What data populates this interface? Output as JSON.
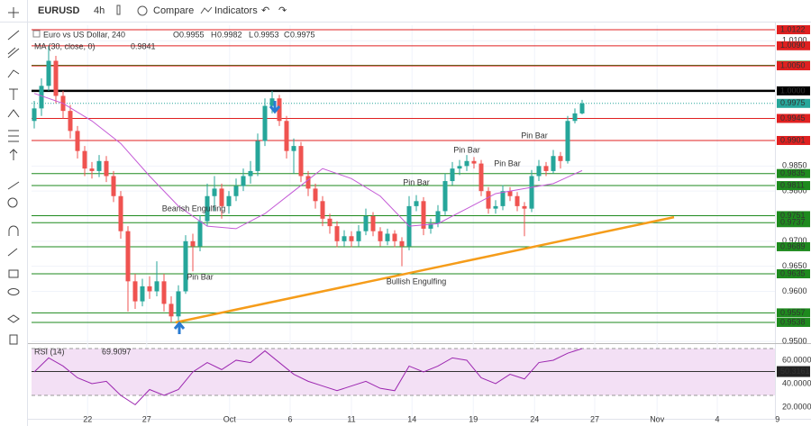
{
  "toolbar": {
    "symbol": "EURUSD",
    "interval": "4h",
    "compare": "Compare",
    "indicators": "Indicators"
  },
  "legend": {
    "title": "Euro vs US Dollar, 240",
    "o_label": "O",
    "open": 0.9955,
    "h_label": "H",
    "high": 0.9982,
    "l_label": "L",
    "low": 0.9953,
    "c_label": "C",
    "close": 0.9975,
    "ma_label": "MA (30, close, 0)",
    "ma_value": 0.9841,
    "rsi_label": "RSI (14)",
    "rsi_value": 69.9097
  },
  "chart_data": {
    "type": "candlestick",
    "xlim": [
      -0.375,
      102.75
    ],
    "ylim": [
      0.9502,
      1.0131
    ],
    "xticks": [
      {
        "value": 7.4,
        "label": "22"
      },
      {
        "value": 15.6,
        "label": "27"
      },
      {
        "value": 27.1,
        "label": "Oct"
      },
      {
        "value": 35.5,
        "label": "6"
      },
      {
        "value": 44,
        "label": "11"
      },
      {
        "value": 52.4,
        "label": "14"
      },
      {
        "value": 60.9,
        "label": "19"
      },
      {
        "value": 69.4,
        "label": "24"
      },
      {
        "value": 77.75,
        "label": "27"
      },
      {
        "value": 86.4,
        "label": "Nov"
      },
      {
        "value": 94.75,
        "label": "4"
      },
      {
        "value": 103.1,
        "label": "9"
      }
    ],
    "yticks": [
      {
        "value": 1.01,
        "label": "1.0100"
      },
      {
        "value": 0.985,
        "label": "0.9850"
      },
      {
        "value": 0.98,
        "label": "0.9800"
      },
      {
        "value": 0.97,
        "label": "0.9700"
      },
      {
        "value": 0.965,
        "label": "0.9650"
      },
      {
        "value": 0.96,
        "label": "0.9600"
      },
      {
        "value": 0.95,
        "label": "0.9500"
      }
    ],
    "up_color": "#26a69a",
    "down_color": "#ef5350",
    "open": [
      0.994,
      0.9965,
      1.001,
      1.006,
      0.999,
      0.996,
      0.992,
      0.988,
      0.9845,
      0.984,
      0.986,
      0.983,
      0.979,
      0.972,
      0.962,
      0.958,
      0.961,
      0.96,
      0.962,
      0.9575,
      0.955,
      0.96,
      0.97,
      0.969,
      0.974,
      0.979,
      0.9805,
      0.977,
      0.979,
      0.981,
      0.983,
      0.984,
      0.99,
      0.997,
      0.9985,
      0.994,
      0.988,
      0.989,
      0.983,
      0.9805,
      0.978,
      0.9745,
      0.973,
      0.97,
      0.971,
      0.97,
      0.972,
      0.975,
      0.972,
      0.97,
      0.9715,
      0.97,
      0.969,
      0.977,
      0.978,
      0.9725,
      0.9735,
      0.976,
      0.982,
      0.9845,
      0.985,
      0.986,
      0.9855,
      0.98,
      0.9765,
      0.977,
      0.98,
      0.979,
      0.977,
      0.9765,
      0.983,
      0.985,
      0.984,
      0.987,
      0.986,
      0.994,
      0.9955
    ],
    "high": [
      0.998,
      1.0025,
      1.009,
      1.007,
      1.0,
      0.9972,
      0.993,
      0.989,
      0.9858,
      0.9872,
      0.987,
      0.984,
      0.98,
      0.973,
      0.9635,
      0.9625,
      0.963,
      0.966,
      0.9635,
      0.959,
      0.9612,
      0.9712,
      0.9715,
      0.9752,
      0.9815,
      0.983,
      0.9815,
      0.98,
      0.9825,
      0.9845,
      0.986,
      0.9915,
      0.9985,
      1.0,
      0.9992,
      0.995,
      0.9905,
      0.9898,
      0.984,
      0.9815,
      0.979,
      0.9755,
      0.974,
      0.9722,
      0.972,
      0.9732,
      0.9765,
      0.9758,
      0.9728,
      0.9725,
      0.9722,
      0.9708,
      0.979,
      0.9792,
      0.9788,
      0.9745,
      0.9772,
      0.9835,
      0.9858,
      0.9862,
      0.9872,
      0.9868,
      0.9862,
      0.9808,
      0.9782,
      0.9812,
      0.9808,
      0.9798,
      0.9778,
      0.9842,
      0.9862,
      0.9858,
      0.9882,
      0.9878,
      0.995,
      0.9965,
      0.9982
    ],
    "low": [
      0.9925,
      0.995,
      1.0,
      0.9975,
      0.9945,
      0.9905,
      0.9865,
      0.983,
      0.9825,
      0.9828,
      0.9818,
      0.9778,
      0.9705,
      0.956,
      0.9565,
      0.957,
      0.9585,
      0.959,
      0.956,
      0.9538,
      0.954,
      0.9595,
      0.964,
      0.968,
      0.973,
      0.976,
      0.9745,
      0.9755,
      0.978,
      0.98,
      0.9815,
      0.983,
      0.989,
      0.9955,
      0.993,
      0.9865,
      0.9835,
      0.9818,
      0.979,
      0.9765,
      0.973,
      0.9715,
      0.9688,
      0.969,
      0.9688,
      0.969,
      0.9712,
      0.971,
      0.969,
      0.9692,
      0.9688,
      0.965,
      0.9682,
      0.976,
      0.9712,
      0.9715,
      0.9728,
      0.9752,
      0.9812,
      0.9832,
      0.984,
      0.9845,
      0.979,
      0.9755,
      0.9755,
      0.9762,
      0.978,
      0.976,
      0.971,
      0.9758,
      0.982,
      0.983,
      0.9835,
      0.9845,
      0.9855,
      0.9935,
      0.9953
    ],
    "close": [
      0.9965,
      1.001,
      1.006,
      0.999,
      0.996,
      0.992,
      0.988,
      0.9845,
      0.984,
      0.986,
      0.983,
      0.979,
      0.972,
      0.962,
      0.958,
      0.961,
      0.96,
      0.962,
      0.9575,
      0.955,
      0.96,
      0.97,
      0.969,
      0.974,
      0.979,
      0.9805,
      0.977,
      0.979,
      0.981,
      0.983,
      0.984,
      0.99,
      0.997,
      0.9985,
      0.994,
      0.988,
      0.989,
      0.983,
      0.9805,
      0.978,
      0.9745,
      0.973,
      0.97,
      0.971,
      0.97,
      0.972,
      0.975,
      0.972,
      0.97,
      0.9715,
      0.97,
      0.969,
      0.977,
      0.978,
      0.9725,
      0.9735,
      0.976,
      0.982,
      0.9845,
      0.985,
      0.986,
      0.9855,
      0.98,
      0.9765,
      0.977,
      0.98,
      0.979,
      0.977,
      0.9765,
      0.983,
      0.985,
      0.984,
      0.987,
      0.986,
      0.994,
      0.9955,
      0.9975
    ],
    "ma": {
      "color": "#c45ad6",
      "x": [
        0,
        4,
        8,
        12,
        16,
        20,
        24,
        28,
        32,
        36,
        40,
        44,
        48,
        52,
        56,
        60,
        64,
        68,
        72,
        76
      ],
      "values": [
        0.9995,
        0.9975,
        0.994,
        0.9895,
        0.983,
        0.977,
        0.973,
        0.9725,
        0.9755,
        0.98,
        0.9845,
        0.9825,
        0.979,
        0.973,
        0.9735,
        0.9765,
        0.9795,
        0.9805,
        0.9815,
        0.9841
      ]
    },
    "trendline": {
      "color": "#f59c1a",
      "x": [
        19.6,
        88.75
      ],
      "values": [
        0.9538,
        0.9748
      ]
    },
    "levels": [
      {
        "value": 1.0122,
        "label": "1.0122",
        "color": "#e02020"
      },
      {
        "value": 1.009,
        "label": "1.0090",
        "color": "#e02020"
      },
      {
        "value": 1.0051,
        "label": "1.0051",
        "color": "#1e8a1e"
      },
      {
        "value": 1.005,
        "label": "1.0050",
        "color": "#e02020"
      },
      {
        "value": 1,
        "label": "1.0000",
        "color": "#000000"
      },
      {
        "value": 0.9975,
        "label": "0.9975",
        "color": "#26a69a"
      },
      {
        "value": 0.9945,
        "label": "0.9945",
        "color": "#e02020"
      },
      {
        "value": 0.9901,
        "label": "0.9901",
        "color": "#e02020"
      },
      {
        "value": 0.9835,
        "label": "0.9835",
        "color": "#1e8a1e"
      },
      {
        "value": 0.9811,
        "label": "0.9811",
        "color": "#1e8a1e"
      },
      {
        "value": 0.9751,
        "label": "0.9751",
        "color": "#1e8a1e"
      },
      {
        "value": 0.9737,
        "label": "0.9737",
        "color": "#1e8a1e"
      },
      {
        "value": 0.9689,
        "label": "0.9689",
        "color": "#1e8a1e"
      },
      {
        "value": 0.9635,
        "label": "0.9635",
        "color": "#1e8a1e"
      },
      {
        "value": 0.9557,
        "label": "0.9557",
        "color": "#1e8a1e"
      },
      {
        "value": 0.9538,
        "label": "0.9538",
        "color": "#1e8a1e"
      }
    ],
    "annotations": [
      "Bearish Engulfing",
      "Pin Bar",
      "Pin Bar",
      "Bullish Engulfing",
      "Pin Bar",
      "Pin Bar",
      "Pin Bar"
    ],
    "rsi": {
      "color": "#9c27b0",
      "ylim": [
        10,
        71.5
      ],
      "yticks": [
        {
          "value": 60,
          "label": "60.0000"
        },
        {
          "value": 40,
          "label": "40.0000"
        },
        {
          "value": 20,
          "label": "20.0000"
        }
      ],
      "band": [
        30,
        70
      ],
      "level": 50.3161,
      "x": [
        0,
        2,
        4,
        6,
        8,
        10,
        12,
        14,
        16,
        18,
        20,
        22,
        24,
        26,
        28,
        30,
        32,
        34,
        36,
        38,
        40,
        42,
        44,
        46,
        48,
        50,
        52,
        54,
        56,
        58,
        60,
        62,
        64,
        66,
        68,
        70,
        72,
        74,
        76
      ],
      "values": [
        50,
        62,
        55,
        45,
        40,
        42,
        30,
        22,
        35,
        30,
        35,
        50,
        58,
        52,
        60,
        58,
        68,
        58,
        48,
        42,
        38,
        34,
        38,
        42,
        36,
        34,
        55,
        50,
        55,
        62,
        60,
        45,
        40,
        48,
        44,
        58,
        60,
        66,
        69.9097
      ]
    }
  }
}
